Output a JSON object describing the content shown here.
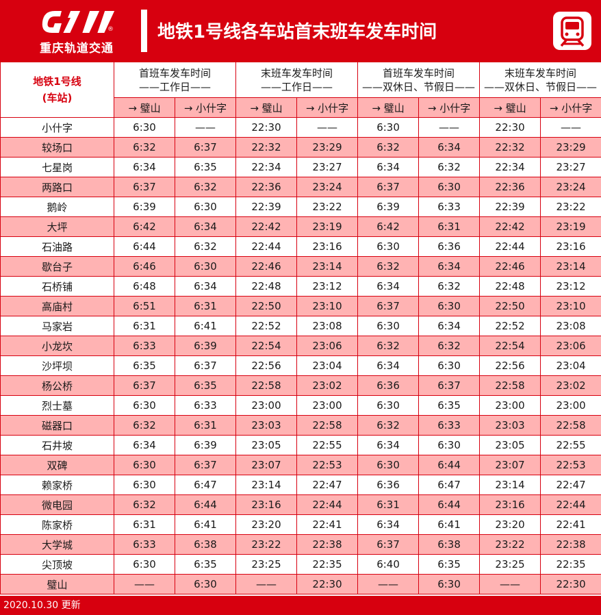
{
  "header": {
    "company_name": "重庆轨道交通",
    "logo_reg": "®",
    "title": "地铁1号线各车站首末班车发车时间",
    "logo_icon": "crt-logo-icon",
    "metro_icon": "metro-train-icon",
    "brand_color": "#d7000f",
    "stripe_color": "#ffb3b3"
  },
  "table": {
    "station_header": [
      "地铁1号线",
      "(车站)"
    ],
    "groups": [
      {
        "line1": "首班车发车时间",
        "line2": "——工作日——"
      },
      {
        "line1": "末班车发车时间",
        "line2": "——工作日——"
      },
      {
        "line1": "首班车发车时间",
        "line2": "——双休日、节假日——"
      },
      {
        "line1": "末班车发车时间",
        "line2": "——双休日、节假日——"
      }
    ],
    "directions": [
      "→ 璧山",
      "→ 小什字",
      "→ 璧山",
      "→ 小什字",
      "→ 璧山",
      "→ 小什字",
      "→ 璧山",
      "→ 小什字"
    ],
    "rows": [
      {
        "station": "小什字",
        "times": [
          "6:30",
          "——",
          "22:30",
          "——",
          "6:30",
          "——",
          "22:30",
          "——"
        ]
      },
      {
        "station": "较场口",
        "times": [
          "6:32",
          "6:37",
          "22:32",
          "23:29",
          "6:32",
          "6:34",
          "22:32",
          "23:29"
        ]
      },
      {
        "station": "七星岗",
        "times": [
          "6:34",
          "6:35",
          "22:34",
          "23:27",
          "6:34",
          "6:32",
          "22:34",
          "23:27"
        ]
      },
      {
        "station": "两路口",
        "times": [
          "6:37",
          "6:32",
          "22:36",
          "23:24",
          "6:37",
          "6:30",
          "22:36",
          "23:24"
        ]
      },
      {
        "station": "鹅岭",
        "times": [
          "6:39",
          "6:30",
          "22:39",
          "23:22",
          "6:39",
          "6:33",
          "22:39",
          "23:22"
        ]
      },
      {
        "station": "大坪",
        "times": [
          "6:42",
          "6:34",
          "22:42",
          "23:19",
          "6:42",
          "6:31",
          "22:42",
          "23:19"
        ]
      },
      {
        "station": "石油路",
        "times": [
          "6:44",
          "6:32",
          "22:44",
          "23:16",
          "6:30",
          "6:36",
          "22:44",
          "23:16"
        ]
      },
      {
        "station": "歇台子",
        "times": [
          "6:46",
          "6:30",
          "22:46",
          "23:14",
          "6:32",
          "6:34",
          "22:46",
          "23:14"
        ]
      },
      {
        "station": "石桥铺",
        "times": [
          "6:48",
          "6:34",
          "22:48",
          "23:12",
          "6:34",
          "6:32",
          "22:48",
          "23:12"
        ]
      },
      {
        "station": "高庙村",
        "times": [
          "6:51",
          "6:31",
          "22:50",
          "23:10",
          "6:37",
          "6:30",
          "22:50",
          "23:10"
        ]
      },
      {
        "station": "马家岩",
        "times": [
          "6:31",
          "6:41",
          "22:52",
          "23:08",
          "6:30",
          "6:34",
          "22:52",
          "23:08"
        ]
      },
      {
        "station": "小龙坎",
        "times": [
          "6:33",
          "6:39",
          "22:54",
          "23:06",
          "6:32",
          "6:32",
          "22:54",
          "23:06"
        ]
      },
      {
        "station": "沙坪坝",
        "times": [
          "6:35",
          "6:37",
          "22:56",
          "23:04",
          "6:34",
          "6:30",
          "22:56",
          "23:04"
        ]
      },
      {
        "station": "杨公桥",
        "times": [
          "6:37",
          "6:35",
          "22:58",
          "23:02",
          "6:36",
          "6:37",
          "22:58",
          "23:02"
        ]
      },
      {
        "station": "烈士墓",
        "times": [
          "6:30",
          "6:33",
          "23:00",
          "23:00",
          "6:30",
          "6:35",
          "23:00",
          "23:00"
        ]
      },
      {
        "station": "磁器口",
        "times": [
          "6:32",
          "6:31",
          "23:03",
          "22:58",
          "6:32",
          "6:33",
          "23:03",
          "22:58"
        ]
      },
      {
        "station": "石井坡",
        "times": [
          "6:34",
          "6:39",
          "23:05",
          "22:55",
          "6:34",
          "6:30",
          "23:05",
          "22:55"
        ]
      },
      {
        "station": "双碑",
        "times": [
          "6:30",
          "6:37",
          "23:07",
          "22:53",
          "6:30",
          "6:44",
          "23:07",
          "22:53"
        ]
      },
      {
        "station": "赖家桥",
        "times": [
          "6:30",
          "6:47",
          "23:14",
          "22:47",
          "6:36",
          "6:47",
          "23:14",
          "22:47"
        ]
      },
      {
        "station": "微电园",
        "times": [
          "6:32",
          "6:44",
          "23:16",
          "22:44",
          "6:31",
          "6:44",
          "23:16",
          "22:44"
        ]
      },
      {
        "station": "陈家桥",
        "times": [
          "6:31",
          "6:41",
          "23:20",
          "22:41",
          "6:34",
          "6:41",
          "23:20",
          "22:41"
        ]
      },
      {
        "station": "大学城",
        "times": [
          "6:33",
          "6:38",
          "23:22",
          "22:38",
          "6:37",
          "6:38",
          "23:22",
          "22:38"
        ]
      },
      {
        "station": "尖顶坡",
        "times": [
          "6:30",
          "6:35",
          "23:25",
          "22:35",
          "6:40",
          "6:35",
          "23:25",
          "22:35"
        ]
      },
      {
        "station": "璧山",
        "times": [
          "——",
          "6:30",
          "——",
          "22:30",
          "——",
          "6:30",
          "——",
          "22:30"
        ]
      }
    ]
  },
  "footer": {
    "updated": "2020.10.30 更新"
  }
}
